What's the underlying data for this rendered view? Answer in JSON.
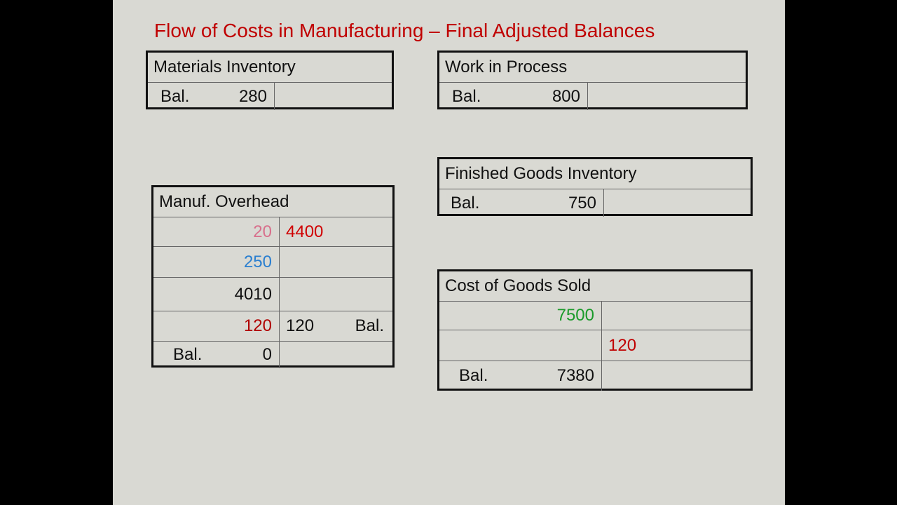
{
  "title": "Flow of Costs in Manufacturing – Final Adjusted Balances",
  "materials_inventory": {
    "name": "Materials Inventory",
    "debit_label": "Bal.",
    "debit": 280
  },
  "work_in_process": {
    "name": "Work in Process",
    "debit_label": "Bal.",
    "debit": 800
  },
  "finished_goods_inventory": {
    "name": "Finished Goods Inventory",
    "debit_label": "Bal.",
    "debit": 750
  },
  "manuf_overhead": {
    "name": "Manuf. Overhead",
    "rows": [
      {
        "debit": 20,
        "credit": 4400
      },
      {
        "debit": 250
      },
      {
        "debit": 4010
      },
      {
        "debit": 120,
        "credit": 120,
        "credit_label": "Bal."
      },
      {
        "debit_label": "Bal.",
        "debit": 0
      }
    ]
  },
  "cost_of_goods_sold": {
    "name": "Cost of Goods Sold",
    "rows": [
      {
        "debit": 7500
      },
      {
        "credit": 120
      },
      {
        "debit_label": "Bal.",
        "debit": 7380
      }
    ]
  }
}
